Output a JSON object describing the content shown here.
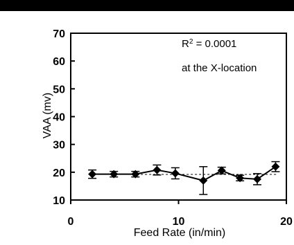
{
  "chart_data": {
    "type": "scatter",
    "xlabel": "Feed Rate (in/min)",
    "ylabel": "VAA (mv)",
    "xlim": [
      0,
      20
    ],
    "ylim": [
      10,
      70
    ],
    "x_ticks": [
      0,
      10,
      20
    ],
    "y_ticks": [
      10,
      20,
      30,
      40,
      50,
      60,
      70
    ],
    "grid": false,
    "annotations": {
      "r_squared_prefix": "R",
      "r_squared_sup": "2",
      "r_squared_value": " = 0.0001",
      "location": "at the X-location"
    },
    "trendline_y": 19.2,
    "series": [
      {
        "marker": "diamond",
        "x": [
          2,
          4,
          6,
          8,
          9.7,
          12.3,
          14,
          15.7,
          17.3,
          19
        ],
        "y": [
          19.3,
          19.3,
          19.3,
          20.8,
          19.6,
          17.0,
          20.6,
          17.9,
          17.5,
          22.0
        ],
        "err": [
          1.5,
          1.0,
          1.0,
          1.8,
          2.0,
          5.0,
          1.2,
          1.0,
          2.0,
          1.8
        ]
      }
    ]
  }
}
